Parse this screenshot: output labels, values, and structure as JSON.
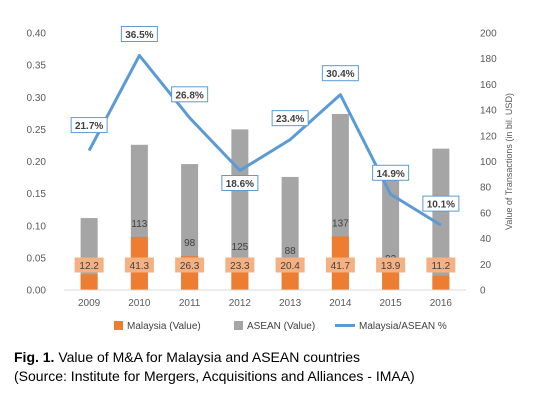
{
  "chart_data": {
    "type": "bar",
    "categories": [
      "2009",
      "2010",
      "2011",
      "2012",
      "2013",
      "2014",
      "2015",
      "2016"
    ],
    "series": [
      {
        "name": "Malaysia (Value)",
        "kind": "bar",
        "axis": "right",
        "color": "#ed7d31",
        "values": [
          12.2,
          41.3,
          26.3,
          23.3,
          20.4,
          41.7,
          13.9,
          11.2
        ]
      },
      {
        "name": "ASEAN (Value)",
        "kind": "bar",
        "axis": "right",
        "color": "#a5a5a5",
        "values": [
          56,
          113,
          98,
          125,
          88,
          137,
          93,
          110
        ]
      },
      {
        "name": "Malaysia/ASEAN %",
        "kind": "line",
        "axis": "left",
        "color": "#5b9bd5",
        "values": [
          0.217,
          0.365,
          0.268,
          0.186,
          0.234,
          0.304,
          0.149,
          0.101
        ],
        "labels": [
          "21.7%",
          "36.5%",
          "26.8%",
          "18.6%",
          "23.4%",
          "30.4%",
          "14.9%",
          "10.1%"
        ]
      }
    ],
    "y_left": {
      "min": 0,
      "max": 0.4,
      "ticks": [
        "0.00",
        "0.05",
        "0.10",
        "0.15",
        "0.20",
        "0.25",
        "0.30",
        "0.35",
        "0.40"
      ]
    },
    "y_right": {
      "min": 0,
      "max": 200,
      "ticks": [
        "0",
        "20",
        "40",
        "60",
        "80",
        "100",
        "120",
        "140",
        "160",
        "180",
        "200"
      ],
      "label": "Value of Transactions (in bil. USD)"
    },
    "legend_position": "bottom",
    "grid": false
  },
  "caption": {
    "lead": "Fig. 1.",
    "text": " Value of M&A for Malaysia and ASEAN countries",
    "source": "(Source: Institute for Mergers, Acquisitions and Alliances - IMAA)"
  }
}
